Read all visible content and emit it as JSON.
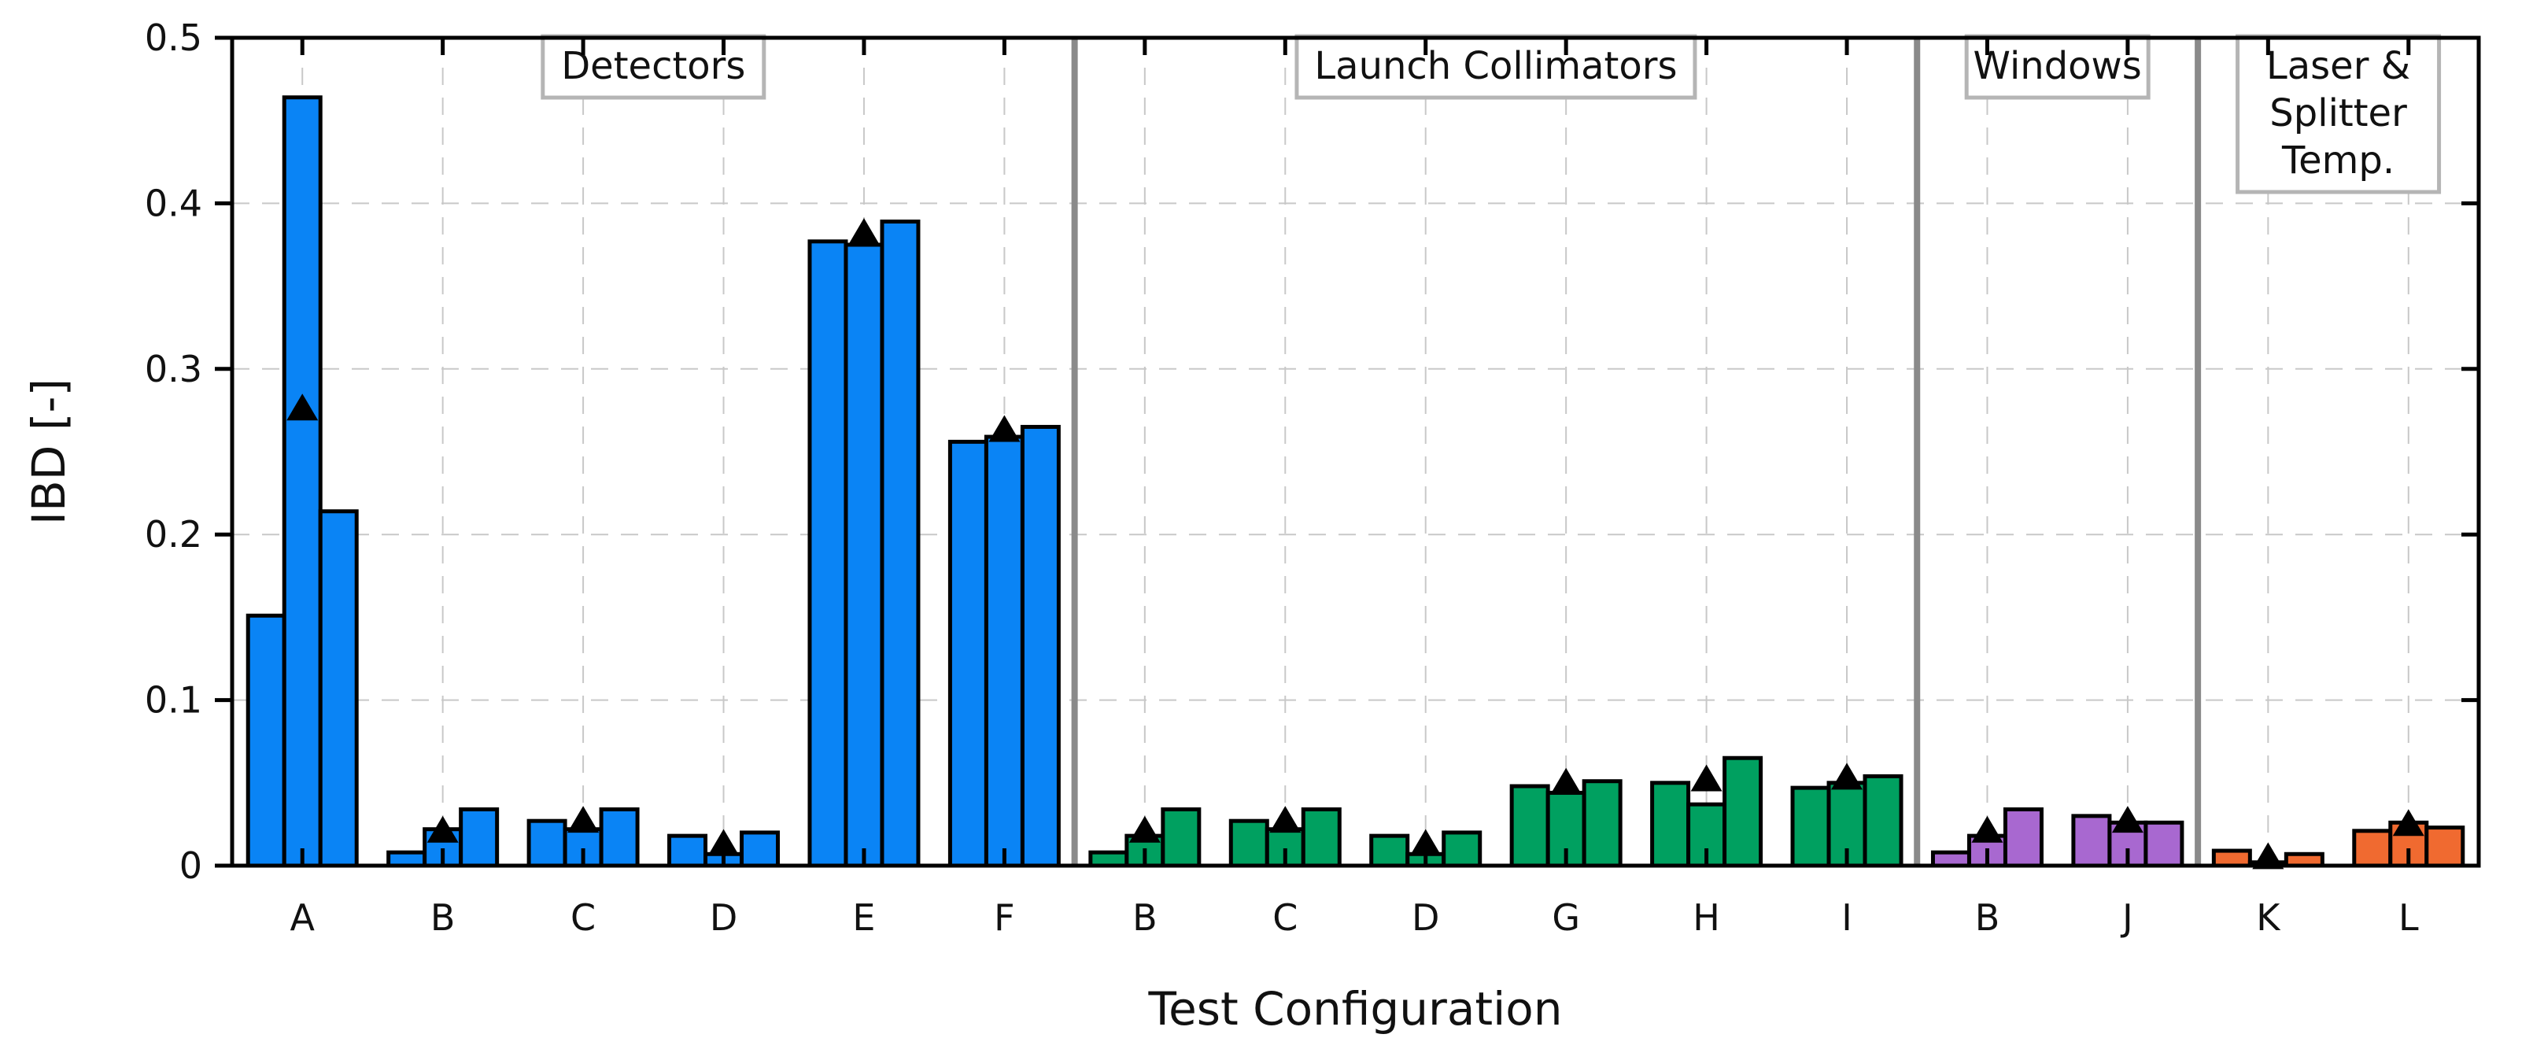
{
  "chart_data": {
    "type": "bar",
    "xlabel": "Test Configuration",
    "ylabel": "IBD [-]",
    "ylim": [
      0,
      0.5
    ],
    "yticks": [
      "0",
      "0.1",
      "0.2",
      "0.3",
      "0.4",
      "0.5"
    ],
    "grid": true,
    "bars_per_category": 3,
    "marker": "triangle (black) on the middle bar",
    "categories": [
      "A",
      "B",
      "C",
      "D",
      "E",
      "F",
      "B",
      "C",
      "D",
      "G",
      "H",
      "I",
      "B",
      "J",
      "K",
      "L"
    ],
    "groups": [
      {
        "label": "Detectors",
        "color": "#0A84F5",
        "categories": [
          "A",
          "B",
          "C",
          "D",
          "E",
          "F"
        ]
      },
      {
        "label": "Launch Collimators",
        "color": "#00A060",
        "categories": [
          "B",
          "C",
          "D",
          "G",
          "H",
          "I"
        ]
      },
      {
        "label": "Windows",
        "color": "#A868D0",
        "categories": [
          "B",
          "J"
        ]
      },
      {
        "label": "Laser & Splitter Temp.",
        "color": "#F06A30",
        "categories": [
          "K",
          "L"
        ]
      }
    ],
    "values": [
      [
        0.151,
        0.464,
        0.214
      ],
      [
        0.008,
        0.022,
        0.034
      ],
      [
        0.027,
        0.022,
        0.034
      ],
      [
        0.018,
        0.007,
        0.02
      ],
      [
        0.377,
        0.375,
        0.389
      ],
      [
        0.256,
        0.259,
        0.265
      ],
      [
        0.008,
        0.018,
        0.034
      ],
      [
        0.027,
        0.022,
        0.034
      ],
      [
        0.018,
        0.007,
        0.02
      ],
      [
        0.048,
        0.044,
        0.051
      ],
      [
        0.05,
        0.037,
        0.065
      ],
      [
        0.047,
        0.05,
        0.054
      ],
      [
        0.008,
        0.018,
        0.034
      ],
      [
        0.03,
        0.026,
        0.026
      ],
      [
        0.009,
        0.002,
        0.007
      ],
      [
        0.021,
        0.026,
        0.023
      ]
    ],
    "markers": [
      0.277,
      0.022,
      0.028,
      0.014,
      0.383,
      0.264,
      0.022,
      0.028,
      0.014,
      0.051,
      0.053,
      0.054,
      0.022,
      0.028,
      0.006,
      0.026
    ]
  }
}
